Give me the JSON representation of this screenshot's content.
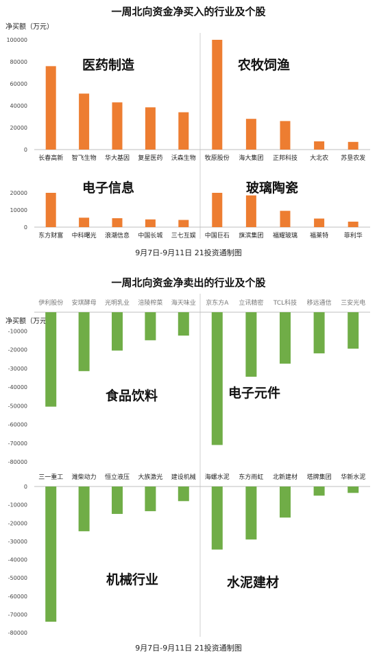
{
  "colors": {
    "buy": "#ED7D31",
    "sell": "#70AD47",
    "axis": "#bfbfbf",
    "divider": "#cfcfcf"
  },
  "buy": {
    "title": "一周北向资金净买入的行业及个股",
    "ylabel": "净买额（万元）",
    "footer": "9月7日-9月11日    21投资通制图"
  },
  "sell": {
    "title": "一周北向资金净卖出的行业及个股",
    "ylabel": "净买额（万元）",
    "footer": "9月7日-9月11日    21投资通制图"
  },
  "chart_data": [
    {
      "type": "bar",
      "title": "医药制造",
      "ylim": [
        0,
        100000
      ],
      "ticks": [
        "0",
        "20000",
        "40000",
        "60000",
        "80000",
        "100000"
      ],
      "categories": [
        "长春高新",
        "智飞生物",
        "华大基因",
        "复星医药",
        "沃森生物"
      ],
      "values": [
        76000,
        51000,
        43000,
        38500,
        34000
      ]
    },
    {
      "type": "bar",
      "title": "农牧饲渔",
      "ylim": [
        0,
        100000
      ],
      "categories": [
        "牧原股份",
        "海大集团",
        "正邦科技",
        "大北农",
        "苏垦农发"
      ],
      "values": [
        100000,
        28000,
        26000,
        7500,
        7000
      ]
    },
    {
      "type": "bar",
      "title": "电子信息",
      "ylim": [
        0,
        20000
      ],
      "ticks": [
        "0",
        "10000",
        "20000"
      ],
      "categories": [
        "东方财富",
        "中科曙光",
        "浪潮信息",
        "中国长城",
        "三七互娱"
      ],
      "values": [
        20000,
        5500,
        5200,
        4500,
        4200
      ]
    },
    {
      "type": "bar",
      "title": "玻璃陶瓷",
      "ylim": [
        0,
        20000
      ],
      "categories": [
        "中国巨石",
        "旗滨集团",
        "福耀玻璃",
        "福莱特",
        "菲利华"
      ],
      "values": [
        20000,
        18500,
        9500,
        5000,
        3200
      ]
    },
    {
      "type": "bar",
      "title": "食品饮料",
      "ylim": [
        -80000,
        0
      ],
      "ticks": [
        "-10000",
        "-20000",
        "-30000",
        "-40000",
        "-50000",
        "-60000",
        "-70000",
        "-80000"
      ],
      "categories": [
        "伊利股份",
        "安琪酵母",
        "光明乳业",
        "涪陵榨菜",
        "海天味业"
      ],
      "values": [
        -50500,
        -31500,
        -20500,
        -15000,
        -12500
      ]
    },
    {
      "type": "bar",
      "title": "电子元件",
      "ylim": [
        -80000,
        0
      ],
      "categories": [
        "京东方A",
        "立讯精密",
        "TCL科技",
        "移远通信",
        "三安光电"
      ],
      "values": [
        -71000,
        -34500,
        -27500,
        -22000,
        -19500
      ]
    },
    {
      "type": "bar",
      "title": "机械行业",
      "ylim": [
        -80000,
        0
      ],
      "ticks": [
        "0",
        "-10000",
        "-20000",
        "-30000",
        "-40000",
        "-50000",
        "-60000",
        "-70000",
        "-80000"
      ],
      "categories": [
        "三一重工",
        "潍柴动力",
        "恒立液压",
        "大族激光",
        "建设机械"
      ],
      "values": [
        -74000,
        -24500,
        -15000,
        -13500,
        -8000
      ]
    },
    {
      "type": "bar",
      "title": "水泥建材",
      "ylim": [
        -80000,
        0
      ],
      "categories": [
        "海螺水泥",
        "东方雨虹",
        "北新建材",
        "塔牌集团",
        "华新水泥"
      ],
      "values": [
        -34500,
        -29000,
        -17000,
        -5000,
        -3500
      ]
    }
  ]
}
